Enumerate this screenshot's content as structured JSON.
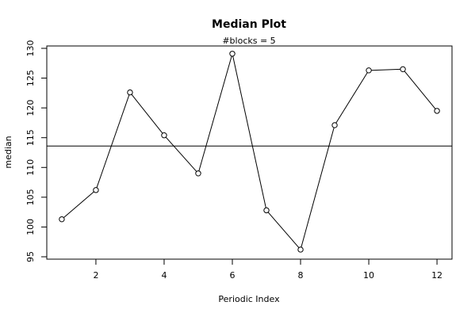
{
  "chart_data": {
    "type": "line",
    "title": "Median Plot",
    "subtitle": "#blocks =  5",
    "xlabel": "Periodic Index",
    "ylabel": "median",
    "x": [
      1,
      2,
      3,
      4,
      5,
      6,
      7,
      8,
      9,
      10,
      11,
      12
    ],
    "series": [
      {
        "values": [
          101.3,
          106.2,
          122.6,
          115.4,
          109.0,
          129.1,
          102.8,
          96.2,
          117.1,
          126.3,
          126.5,
          119.5
        ]
      }
    ],
    "reference_line": {
      "y": 113.6
    },
    "xticks": [
      2,
      4,
      6,
      8,
      10,
      12
    ],
    "yticks": [
      95,
      100,
      105,
      110,
      115,
      120,
      125,
      130
    ],
    "xlim": [
      0.56,
      12.44
    ],
    "ylim": [
      94.6,
      130.4
    ],
    "grid": false,
    "marker": "open-circle"
  }
}
